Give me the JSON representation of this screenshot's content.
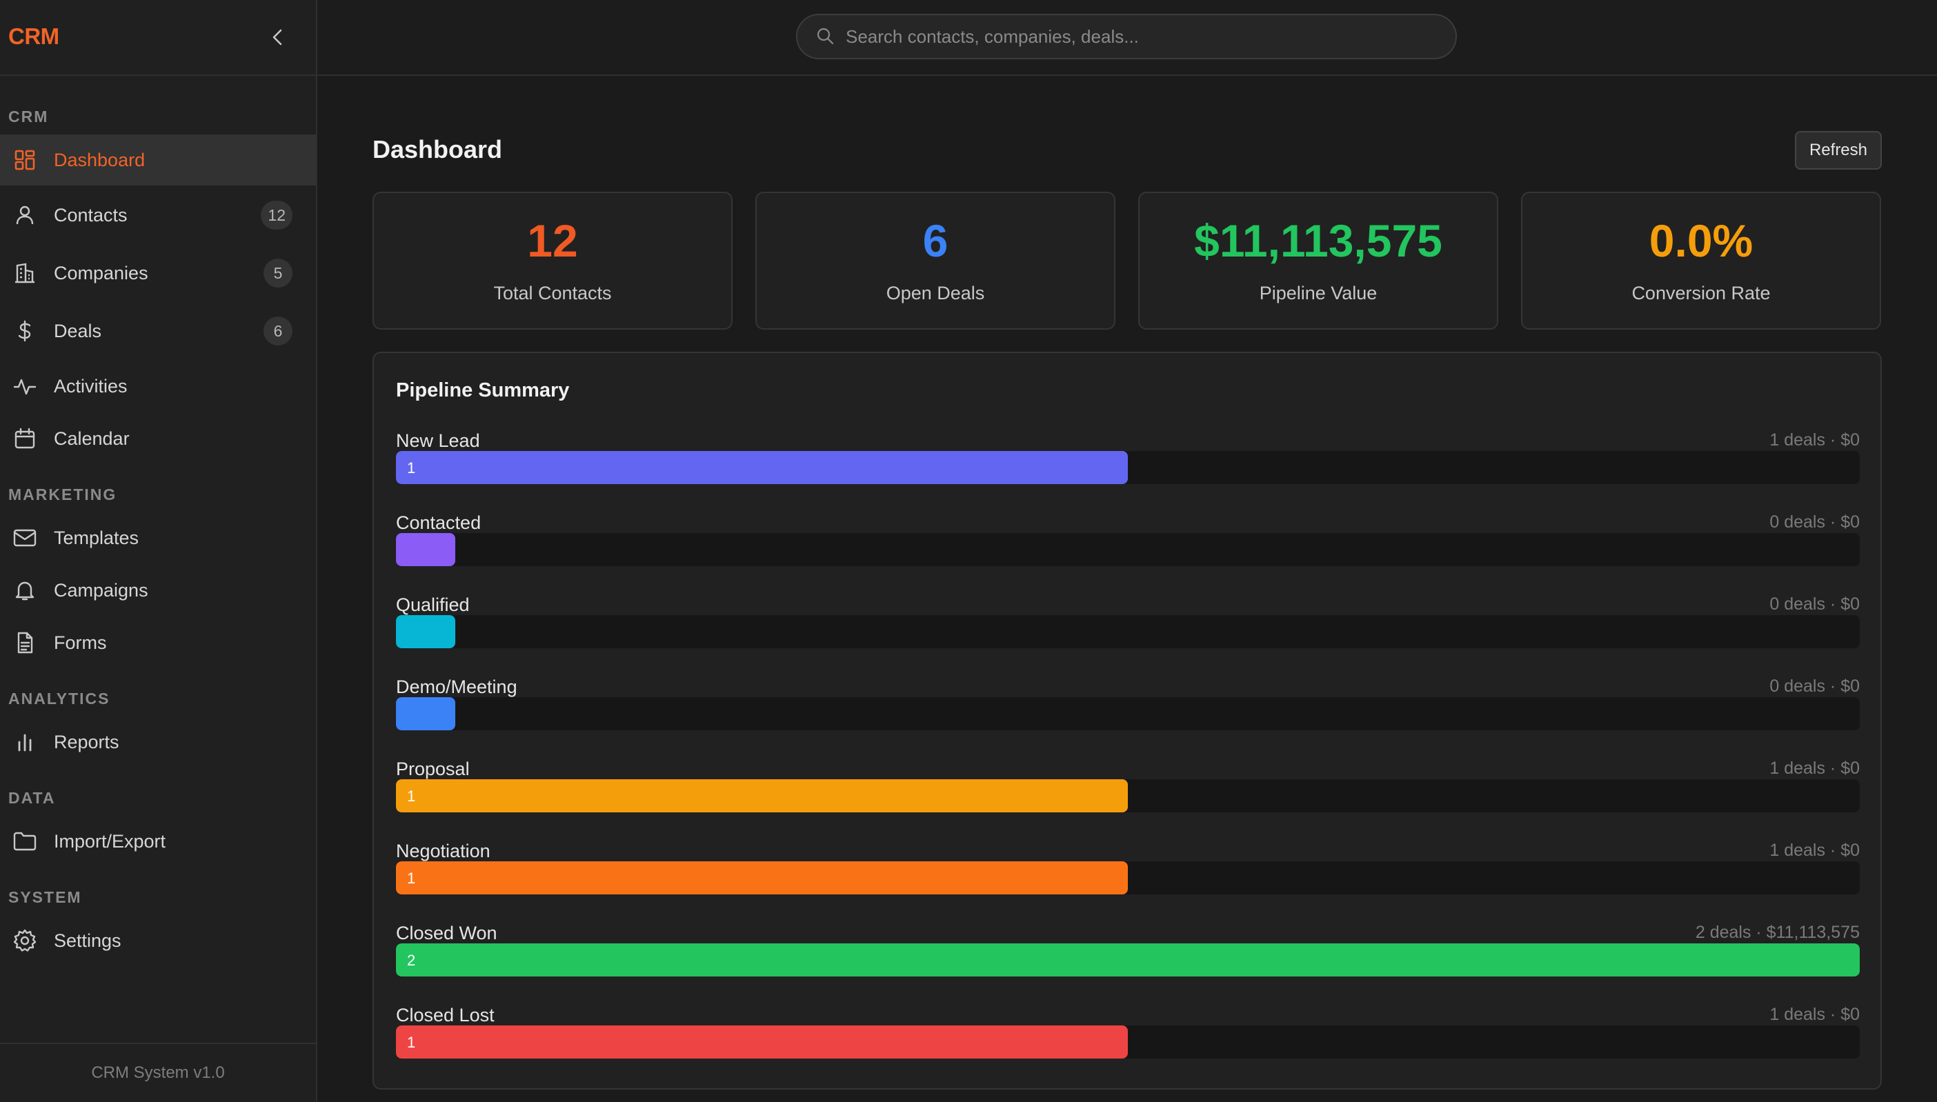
{
  "sidebar": {
    "logo": "CRM",
    "sections": {
      "crm": "CRM",
      "marketing": "MARKETING",
      "analytics": "ANALYTICS",
      "data": "DATA",
      "system": "SYSTEM"
    },
    "items": [
      {
        "label": "Dashboard",
        "icon": "grid-icon",
        "active": true
      },
      {
        "label": "Contacts",
        "icon": "user-icon",
        "badge": "12"
      },
      {
        "label": "Companies",
        "icon": "building-icon",
        "badge": "5"
      },
      {
        "label": "Deals",
        "icon": "dollar-icon",
        "badge": "6"
      },
      {
        "label": "Activities",
        "icon": "activity-icon"
      },
      {
        "label": "Calendar",
        "icon": "calendar-icon"
      },
      {
        "label": "Templates",
        "icon": "mail-icon"
      },
      {
        "label": "Campaigns",
        "icon": "bell-icon"
      },
      {
        "label": "Forms",
        "icon": "document-icon"
      },
      {
        "label": "Reports",
        "icon": "bar-chart-icon"
      },
      {
        "label": "Import/Export",
        "icon": "folder-icon"
      },
      {
        "label": "Settings",
        "icon": "gear-icon"
      }
    ],
    "footer": "CRM System v1.0"
  },
  "search": {
    "placeholder": "Search contacts, companies, deals...",
    "value": ""
  },
  "main": {
    "title": "Dashboard",
    "refresh_label": "Refresh",
    "stats": [
      {
        "value": "12",
        "caption": "Total Contacts",
        "color": "#f05a24"
      },
      {
        "value": "6",
        "caption": "Open Deals",
        "color": "#3b82f6"
      },
      {
        "value": "$11,113,575",
        "caption": "Pipeline Value",
        "color": "#22c55e"
      },
      {
        "value": "0.0%",
        "caption": "Conversion Rate",
        "color": "#f59e0b"
      }
    ],
    "pipeline": {
      "title": "Pipeline Summary",
      "stages": [
        {
          "name": "New Lead",
          "count": 1,
          "count_label": "1",
          "stats": "1 deals · $0",
          "color": "#6366f1",
          "fraction": 0.5
        },
        {
          "name": "Contacted",
          "count": 0,
          "count_label": "",
          "stats": "0 deals · $0",
          "color": "#8b5cf6",
          "fraction": 0
        },
        {
          "name": "Qualified",
          "count": 0,
          "count_label": "",
          "stats": "0 deals · $0",
          "color": "#06b6d4",
          "fraction": 0
        },
        {
          "name": "Demo/Meeting",
          "count": 0,
          "count_label": "",
          "stats": "0 deals · $0",
          "color": "#3b82f6",
          "fraction": 0
        },
        {
          "name": "Proposal",
          "count": 1,
          "count_label": "1",
          "stats": "1 deals · $0",
          "color": "#f59e0b",
          "fraction": 0.5
        },
        {
          "name": "Negotiation",
          "count": 1,
          "count_label": "1",
          "stats": "1 deals · $0",
          "color": "#f97316",
          "fraction": 0.5
        },
        {
          "name": "Closed Won",
          "count": 2,
          "count_label": "2",
          "stats": "2 deals · $11,113,575",
          "color": "#22c55e",
          "fraction": 1
        },
        {
          "name": "Closed Lost",
          "count": 1,
          "count_label": "1",
          "stats": "1 deals · $0",
          "color": "#ef4444",
          "fraction": 0.5
        }
      ]
    }
  }
}
